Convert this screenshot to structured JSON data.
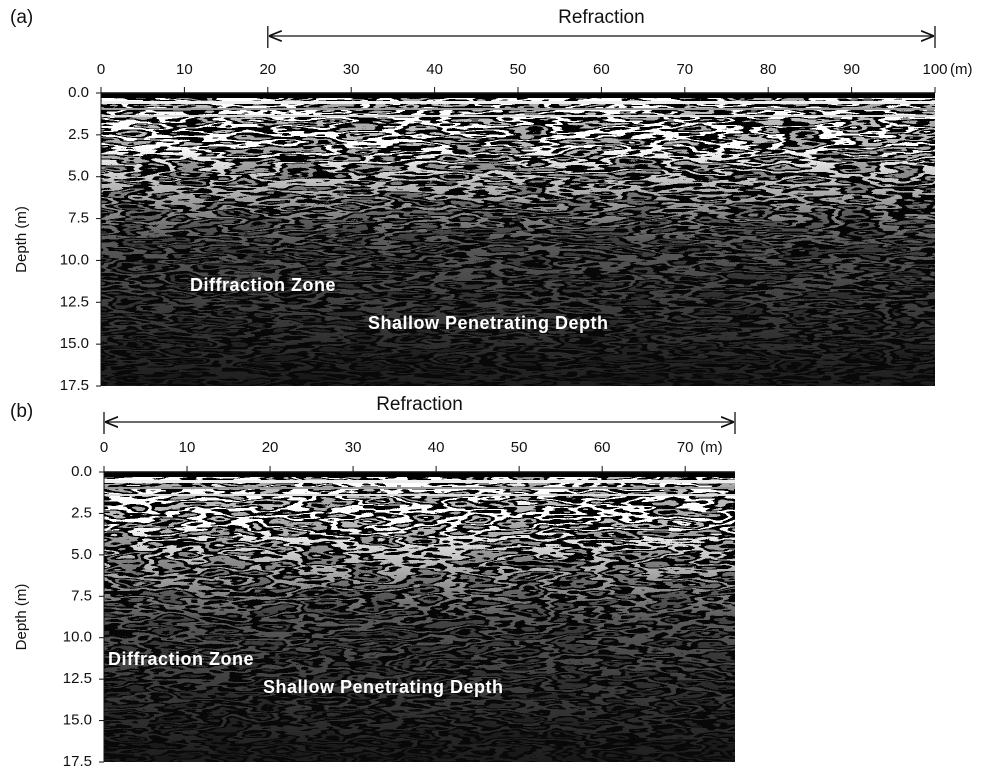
{
  "chart_data": [
    {
      "type": "radargram",
      "panel_label": "(a)",
      "xlim": [
        0,
        100
      ],
      "xticks": [
        0,
        10,
        20,
        30,
        40,
        50,
        60,
        70,
        80,
        90,
        100
      ],
      "x_unit": "(m)",
      "ylim": [
        0,
        17.5
      ],
      "yticks": [
        {
          "value": 0,
          "label": "0.0"
        },
        2.5,
        {
          "value": 5,
          "label": "5.0"
        },
        7.5,
        {
          "value": 10,
          "label": "10.0"
        },
        12.5,
        {
          "value": 15,
          "label": "15.0"
        },
        17.5
      ],
      "ylabel": "Depth (m)",
      "range_annotation": {
        "text": "Refraction",
        "range": [
          20,
          100
        ]
      },
      "annotations": [
        "Diffraction Zone",
        "Shallow Penetrating Depth"
      ]
    },
    {
      "type": "radargram",
      "panel_label": "(b)",
      "xlim": [
        0,
        76
      ],
      "xticks": [
        0,
        10,
        20,
        30,
        40,
        50,
        60,
        70
      ],
      "x_unit": "(m)",
      "ylim": [
        0,
        17.5
      ],
      "yticks": [
        {
          "value": 0,
          "label": "0.0"
        },
        2.5,
        {
          "value": 5,
          "label": "5.0"
        },
        7.5,
        {
          "value": 10,
          "label": "10.0"
        },
        12.5,
        {
          "value": 15,
          "label": "15.0"
        },
        17.5
      ],
      "ylabel": "Depth (m)",
      "range_annotation": {
        "text": "Refraction",
        "range": [
          0,
          76
        ]
      },
      "annotations": [
        "Diffraction Zone",
        "Shallow Penetrating Depth"
      ]
    }
  ]
}
